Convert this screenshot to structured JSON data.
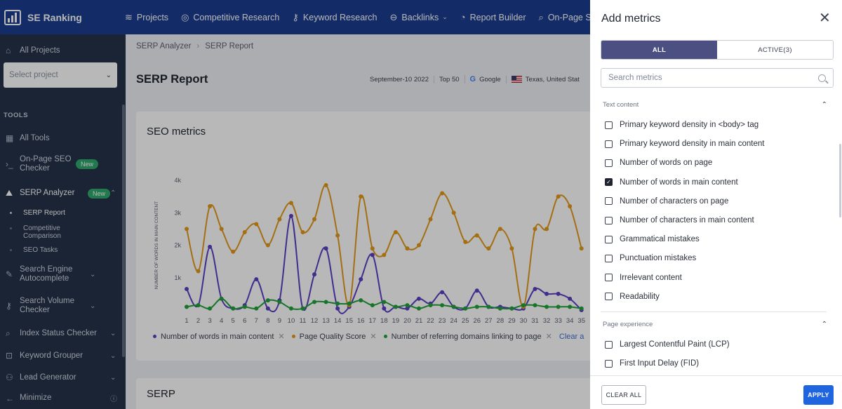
{
  "topbar": {
    "brand": "SE Ranking",
    "nav": [
      {
        "label": "Projects",
        "icon": "layers-icon"
      },
      {
        "label": "Competitive Research",
        "icon": "target-icon"
      },
      {
        "label": "Keyword Research",
        "icon": "key-icon"
      },
      {
        "label": "Backlinks",
        "icon": "link-icon"
      },
      {
        "label": "Report Builder",
        "icon": "pie-icon"
      },
      {
        "label": "On-Page SEO",
        "icon": "search-icon"
      }
    ]
  },
  "sidebar": {
    "all_projects": "All Projects",
    "select_placeholder": "Select project",
    "tools_label": "TOOLS",
    "all_tools": "All Tools",
    "onpage": "On-Page SEO Checker",
    "new_badge": "New",
    "serp_analyzer": "SERP Analyzer",
    "sub_items": [
      "SERP Report",
      "Competitive Comparison",
      "SEO Tasks"
    ],
    "search_engine_autocomplete": "Search Engine Autocomplete",
    "search_volume_checker": "Search Volume Checker",
    "index_status_checker": "Index Status Checker",
    "keyword_grouper": "Keyword Grouper",
    "lead_generator": "Lead Generator",
    "minimize": "Minimize"
  },
  "main": {
    "breadcrumb": [
      "SERP Analyzer",
      "SERP Report"
    ],
    "title": "SERP Report",
    "filters": {
      "date": "September-10 2022",
      "top": "Top 50",
      "engine": "Google",
      "location": "Texas, United Stat"
    },
    "card_title": "SEO metrics",
    "card2_title": "SERP",
    "legend": {
      "series1": "Number of words in main content",
      "series2": "Page Quality Score",
      "series3": "Number of referring domains linking to page",
      "clear": "Clear a"
    }
  },
  "chart_data": {
    "type": "line",
    "ylabel": "NUMBER OF WORDS IN MAIN CONTENT",
    "y_ticks": [
      "1k",
      "2k",
      "3k",
      "4k"
    ],
    "ylim": [
      0,
      4000
    ],
    "x": [
      1,
      2,
      3,
      4,
      5,
      6,
      7,
      8,
      9,
      10,
      11,
      12,
      13,
      14,
      15,
      16,
      17,
      18,
      19,
      20,
      21,
      22,
      23,
      24,
      25,
      26,
      27,
      28,
      29,
      30,
      31,
      32,
      33,
      34,
      35
    ],
    "series": [
      {
        "name": "Number of words in main content",
        "color": "#5b3fc4",
        "values": [
          650,
          150,
          1950,
          350,
          50,
          150,
          950,
          50,
          300,
          2900,
          50,
          1100,
          1900,
          50,
          100,
          950,
          1700,
          50,
          100,
          50,
          350,
          200,
          550,
          100,
          50,
          600,
          100,
          100,
          50,
          50,
          650,
          500,
          500,
          350,
          0
        ]
      },
      {
        "name": "Page Quality Score",
        "color": "#e39a1b",
        "values": [
          2500,
          1200,
          3200,
          2500,
          1800,
          2400,
          2650,
          2000,
          2800,
          3300,
          2400,
          2800,
          3850,
          2300,
          150,
          3500,
          1900,
          1700,
          2400,
          1900,
          2000,
          2800,
          3600,
          3000,
          2100,
          2300,
          1900,
          2500,
          1900,
          100,
          2500,
          2500,
          3500,
          3200,
          1900
        ]
      },
      {
        "name": "Number of referring domains linking to page",
        "color": "#21a33a",
        "values": [
          100,
          150,
          50,
          350,
          50,
          100,
          50,
          300,
          250,
          50,
          50,
          250,
          250,
          200,
          200,
          300,
          150,
          250,
          100,
          150,
          50,
          150,
          150,
          100,
          50,
          100,
          100,
          50,
          50,
          150,
          150,
          100,
          100,
          100,
          50
        ]
      }
    ]
  },
  "panel": {
    "title": "Add metrics",
    "tab_all": "ALL",
    "tab_active": "ACTIVE(3)",
    "search_placeholder": "Search metrics",
    "section_text": "Text content",
    "text_metrics": [
      {
        "label": "Primary keyword density in <body> tag",
        "checked": false
      },
      {
        "label": "Primary keyword density in main content",
        "checked": false
      },
      {
        "label": "Number of words on page",
        "checked": false
      },
      {
        "label": "Number of words in main content",
        "checked": true
      },
      {
        "label": "Number of characters on page",
        "checked": false
      },
      {
        "label": "Number of characters in main content",
        "checked": false
      },
      {
        "label": "Grammatical mistakes",
        "checked": false
      },
      {
        "label": "Punctuation mistakes",
        "checked": false
      },
      {
        "label": "Irrelevant content",
        "checked": false
      },
      {
        "label": "Readability",
        "checked": false
      }
    ],
    "section_experience": "Page experience",
    "experience_metrics": [
      {
        "label": "Largest Contentful Paint (LCP)",
        "checked": false
      },
      {
        "label": "First Input Delay (FID)",
        "checked": false
      }
    ],
    "clear_all": "CLEAR ALL",
    "apply": "APPLY"
  }
}
